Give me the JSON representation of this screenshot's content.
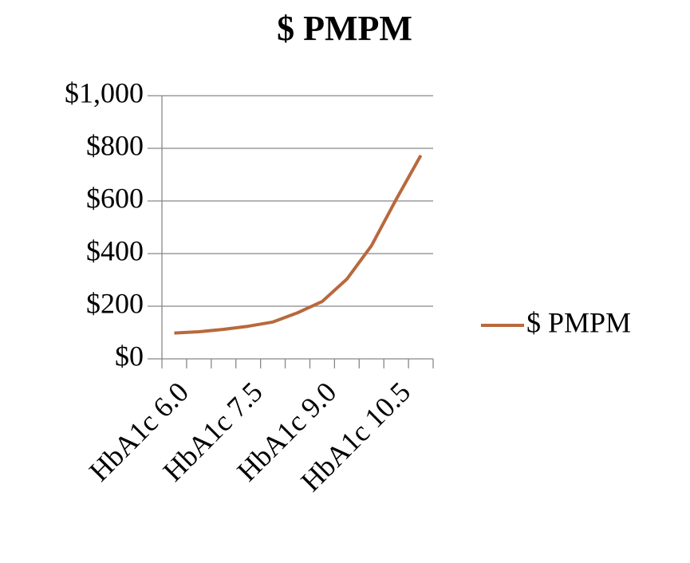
{
  "chart_data": {
    "type": "line",
    "title": "$ PMPM",
    "categories": [
      "HbA1c 6.0",
      null,
      null,
      "HbA1c 7.5",
      null,
      null,
      "HbA1c 9.0",
      null,
      null,
      "HbA1c 10.5",
      null
    ],
    "series": [
      {
        "name": "$ PMPM",
        "color": "#b8693d",
        "values": [
          98,
          103,
          112,
          124,
          140,
          175,
          218,
          303,
          430,
          606,
          773
        ]
      }
    ],
    "ylim": [
      0,
      1000
    ],
    "yticks": [
      {
        "value": 0,
        "label": "$0"
      },
      {
        "value": 200,
        "label": "$200"
      },
      {
        "value": 400,
        "label": "$400"
      },
      {
        "value": 600,
        "label": "$600"
      },
      {
        "value": 800,
        "label": "$800"
      },
      {
        "value": 1000,
        "label": "$1,000"
      }
    ],
    "grid": true,
    "legend": "right"
  }
}
